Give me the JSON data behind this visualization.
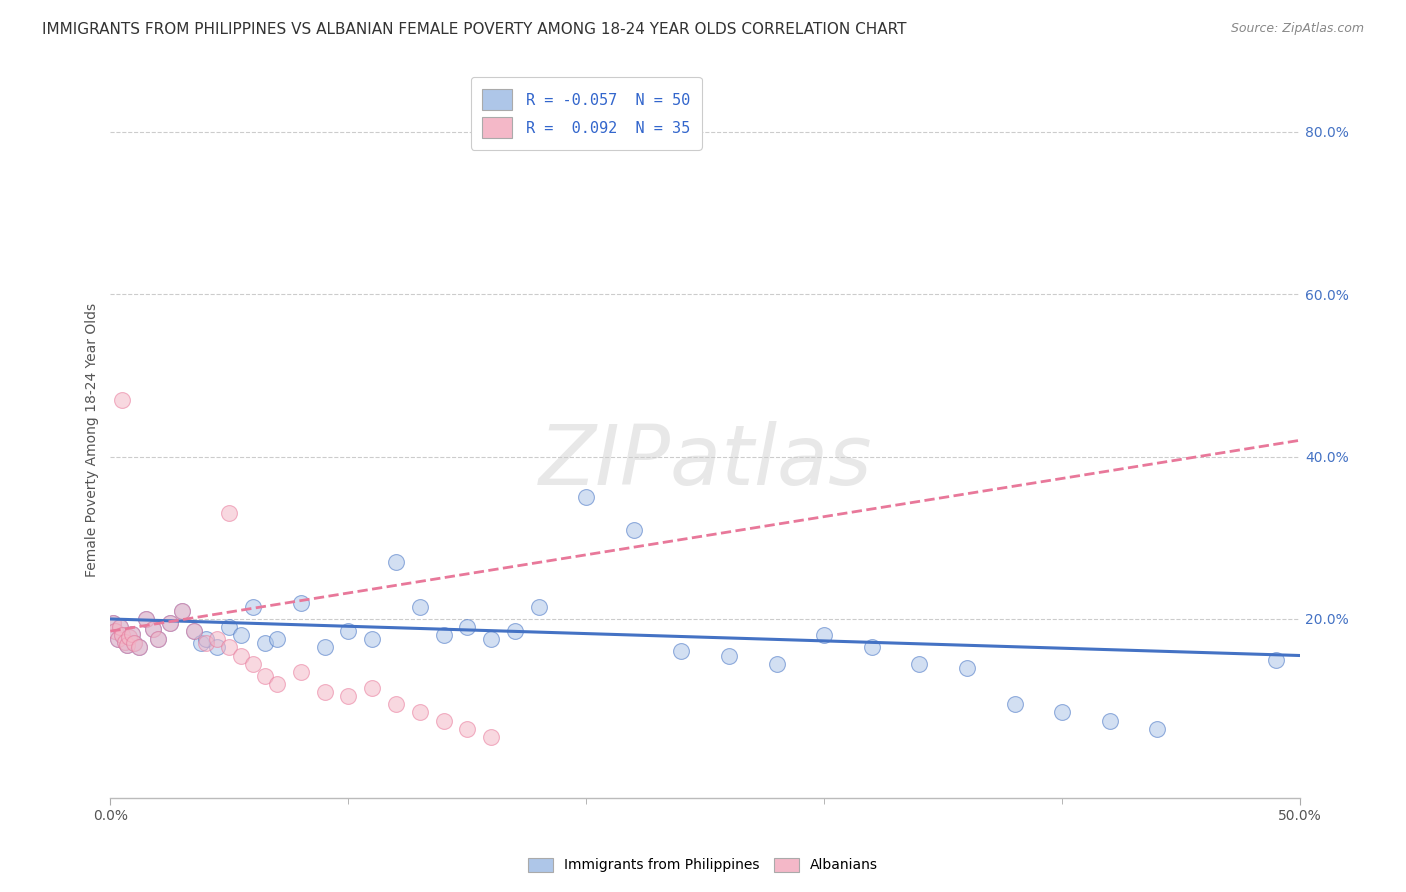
{
  "title": "IMMIGRANTS FROM PHILIPPINES VS ALBANIAN FEMALE POVERTY AMONG 18-24 YEAR OLDS CORRELATION CHART",
  "source": "Source: ZipAtlas.com",
  "ylabel": "Female Poverty Among 18-24 Year Olds",
  "xlim": [
    0.0,
    0.5
  ],
  "ylim": [
    -0.02,
    0.86
  ],
  "xtick_positions": [
    0.0,
    0.5
  ],
  "xticklabels": [
    "0.0%",
    "50.0%"
  ],
  "yticks_right": [
    0.2,
    0.4,
    0.6,
    0.8
  ],
  "yticklabels_right": [
    "20.0%",
    "40.0%",
    "60.0%",
    "80.0%"
  ],
  "grid_color": "#cccccc",
  "background_color": "#ffffff",
  "watermark_text": "ZIPatlas",
  "legend_entries": [
    {
      "label": "R = -0.057  N = 50"
    },
    {
      "label": "R =  0.092  N = 35"
    }
  ],
  "blue_scatter_x": [
    0.001,
    0.002,
    0.003,
    0.004,
    0.005,
    0.006,
    0.007,
    0.008,
    0.009,
    0.01,
    0.012,
    0.015,
    0.018,
    0.02,
    0.025,
    0.03,
    0.035,
    0.038,
    0.04,
    0.045,
    0.05,
    0.055,
    0.06,
    0.065,
    0.07,
    0.08,
    0.09,
    0.1,
    0.11,
    0.12,
    0.13,
    0.14,
    0.15,
    0.16,
    0.17,
    0.18,
    0.2,
    0.22,
    0.24,
    0.26,
    0.28,
    0.3,
    0.32,
    0.34,
    0.36,
    0.38,
    0.4,
    0.42,
    0.44,
    0.49
  ],
  "blue_scatter_y": [
    0.195,
    0.185,
    0.175,
    0.19,
    0.18,
    0.172,
    0.168,
    0.178,
    0.182,
    0.17,
    0.165,
    0.2,
    0.188,
    0.175,
    0.195,
    0.21,
    0.185,
    0.17,
    0.175,
    0.165,
    0.19,
    0.18,
    0.215,
    0.17,
    0.175,
    0.22,
    0.165,
    0.185,
    0.175,
    0.27,
    0.215,
    0.18,
    0.19,
    0.175,
    0.185,
    0.215,
    0.35,
    0.31,
    0.16,
    0.155,
    0.145,
    0.18,
    0.165,
    0.145,
    0.14,
    0.095,
    0.085,
    0.075,
    0.065,
    0.15
  ],
  "pink_scatter_x": [
    0.001,
    0.002,
    0.003,
    0.004,
    0.005,
    0.006,
    0.007,
    0.008,
    0.009,
    0.01,
    0.012,
    0.015,
    0.018,
    0.02,
    0.025,
    0.03,
    0.035,
    0.04,
    0.045,
    0.05,
    0.055,
    0.06,
    0.065,
    0.07,
    0.08,
    0.09,
    0.1,
    0.11,
    0.12,
    0.13,
    0.14,
    0.15,
    0.16,
    0.05,
    0.005
  ],
  "pink_scatter_y": [
    0.195,
    0.185,
    0.175,
    0.19,
    0.18,
    0.172,
    0.168,
    0.178,
    0.182,
    0.17,
    0.165,
    0.2,
    0.188,
    0.175,
    0.195,
    0.21,
    0.185,
    0.17,
    0.175,
    0.165,
    0.155,
    0.145,
    0.13,
    0.12,
    0.135,
    0.11,
    0.105,
    0.115,
    0.095,
    0.085,
    0.075,
    0.065,
    0.055,
    0.33,
    0.47
  ],
  "blue_line_x": [
    0.0,
    0.5
  ],
  "blue_line_y": [
    0.2,
    0.155
  ],
  "pink_line_x": [
    0.0,
    0.5
  ],
  "pink_line_y": [
    0.185,
    0.42
  ],
  "dot_size": 130,
  "dot_alpha": 0.55,
  "blue_color": "#4472c4",
  "pink_color": "#e8789a",
  "blue_fill": "#aec6e8",
  "pink_fill": "#f4b8c8",
  "title_fontsize": 11,
  "axis_fontsize": 10,
  "tick_fontsize": 10
}
